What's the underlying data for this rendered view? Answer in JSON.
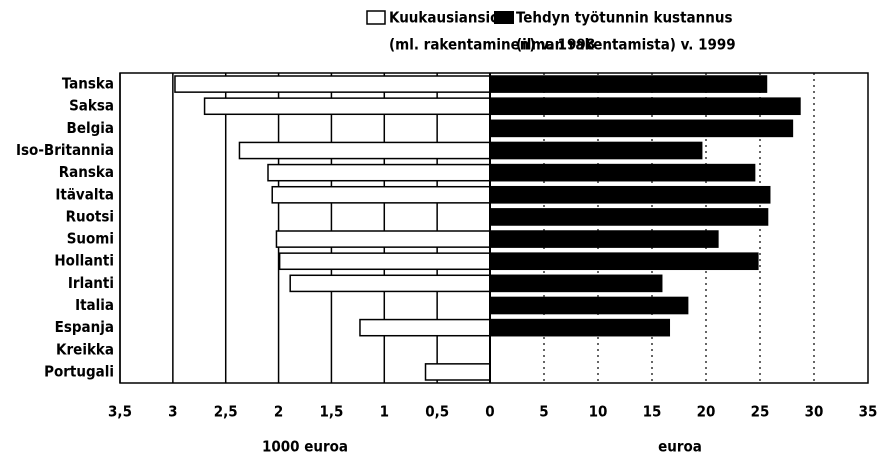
{
  "chart_data": {
    "type": "butterfly",
    "categories": [
      "Tanska",
      "Saksa",
      "Belgia",
      "Iso-Britannia",
      "Ranska",
      "Itävalta",
      "Ruotsi",
      "Suomi",
      "Hollanti",
      "Irlanti",
      "Italia",
      "Espanja",
      "Kreikka",
      "Portugali"
    ],
    "series": [
      {
        "name": "Kuukausiansio",
        "subtitle": "(ml. rakentaminen) v. 1998",
        "color": "#ffffff",
        "axis": "x2",
        "values": [
          2.98,
          2.7,
          null,
          2.37,
          2.1,
          2.06,
          null,
          2.02,
          1.99,
          1.89,
          null,
          1.23,
          null,
          0.61
        ]
      },
      {
        "name": "Tehdyn työtunnin kustannus",
        "subtitle": "(ilman rakentamista) v. 1999",
        "color": "#000000",
        "axis": "x",
        "values": [
          25.6,
          28.7,
          28.0,
          19.6,
          24.5,
          25.9,
          25.7,
          21.1,
          24.8,
          15.9,
          18.3,
          16.6,
          null,
          null
        ]
      }
    ],
    "xlim": [
      0,
      35
    ],
    "xticks": [
      0,
      5,
      10,
      15,
      20,
      25,
      30,
      35
    ],
    "xlabel": "euroa",
    "x2lim": [
      0,
      3.5
    ],
    "x2ticks": [
      {
        "value": 3.5,
        "label": "3,5"
      },
      3,
      {
        "value": 2.5,
        "label": "2,5"
      },
      2,
      {
        "value": 1.5,
        "label": "1,5"
      },
      1,
      {
        "value": 0.5,
        "label": "0,5"
      }
    ],
    "x2label": "1000 euroa",
    "grid": true
  }
}
